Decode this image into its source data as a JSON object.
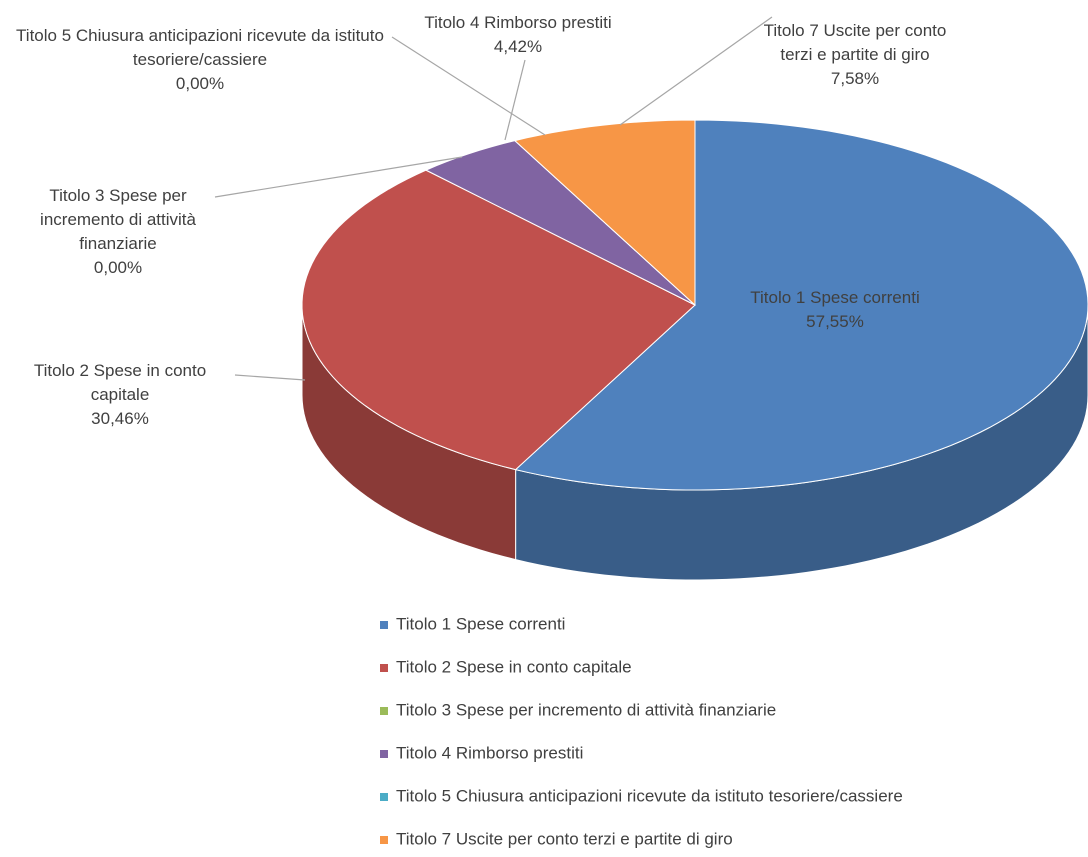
{
  "chart_data": {
    "type": "pie",
    "categories": [
      "Titolo 1 Spese correnti",
      "Titolo 2 Spese in conto capitale",
      "Titolo 3 Spese per incremento di attività finanziarie",
      "Titolo 4 Rimborso prestiti",
      "Titolo 5 Chiusura anticipazioni ricevute da istituto tesoriere/cassiere",
      "Titolo 7 Uscite per conto terzi e partite di giro"
    ],
    "values": [
      57.55,
      30.46,
      0,
      4.42,
      0,
      7.58
    ],
    "value_labels": [
      "57,55%",
      "30,46%",
      "0,00%",
      "4,42%",
      "0,00%",
      "7,58%"
    ],
    "colors": [
      "#4f81bd",
      "#c0504d",
      "#9bbb59",
      "#8064a2",
      "#4bacc6",
      "#f79646"
    ],
    "legend": "bottom"
  }
}
